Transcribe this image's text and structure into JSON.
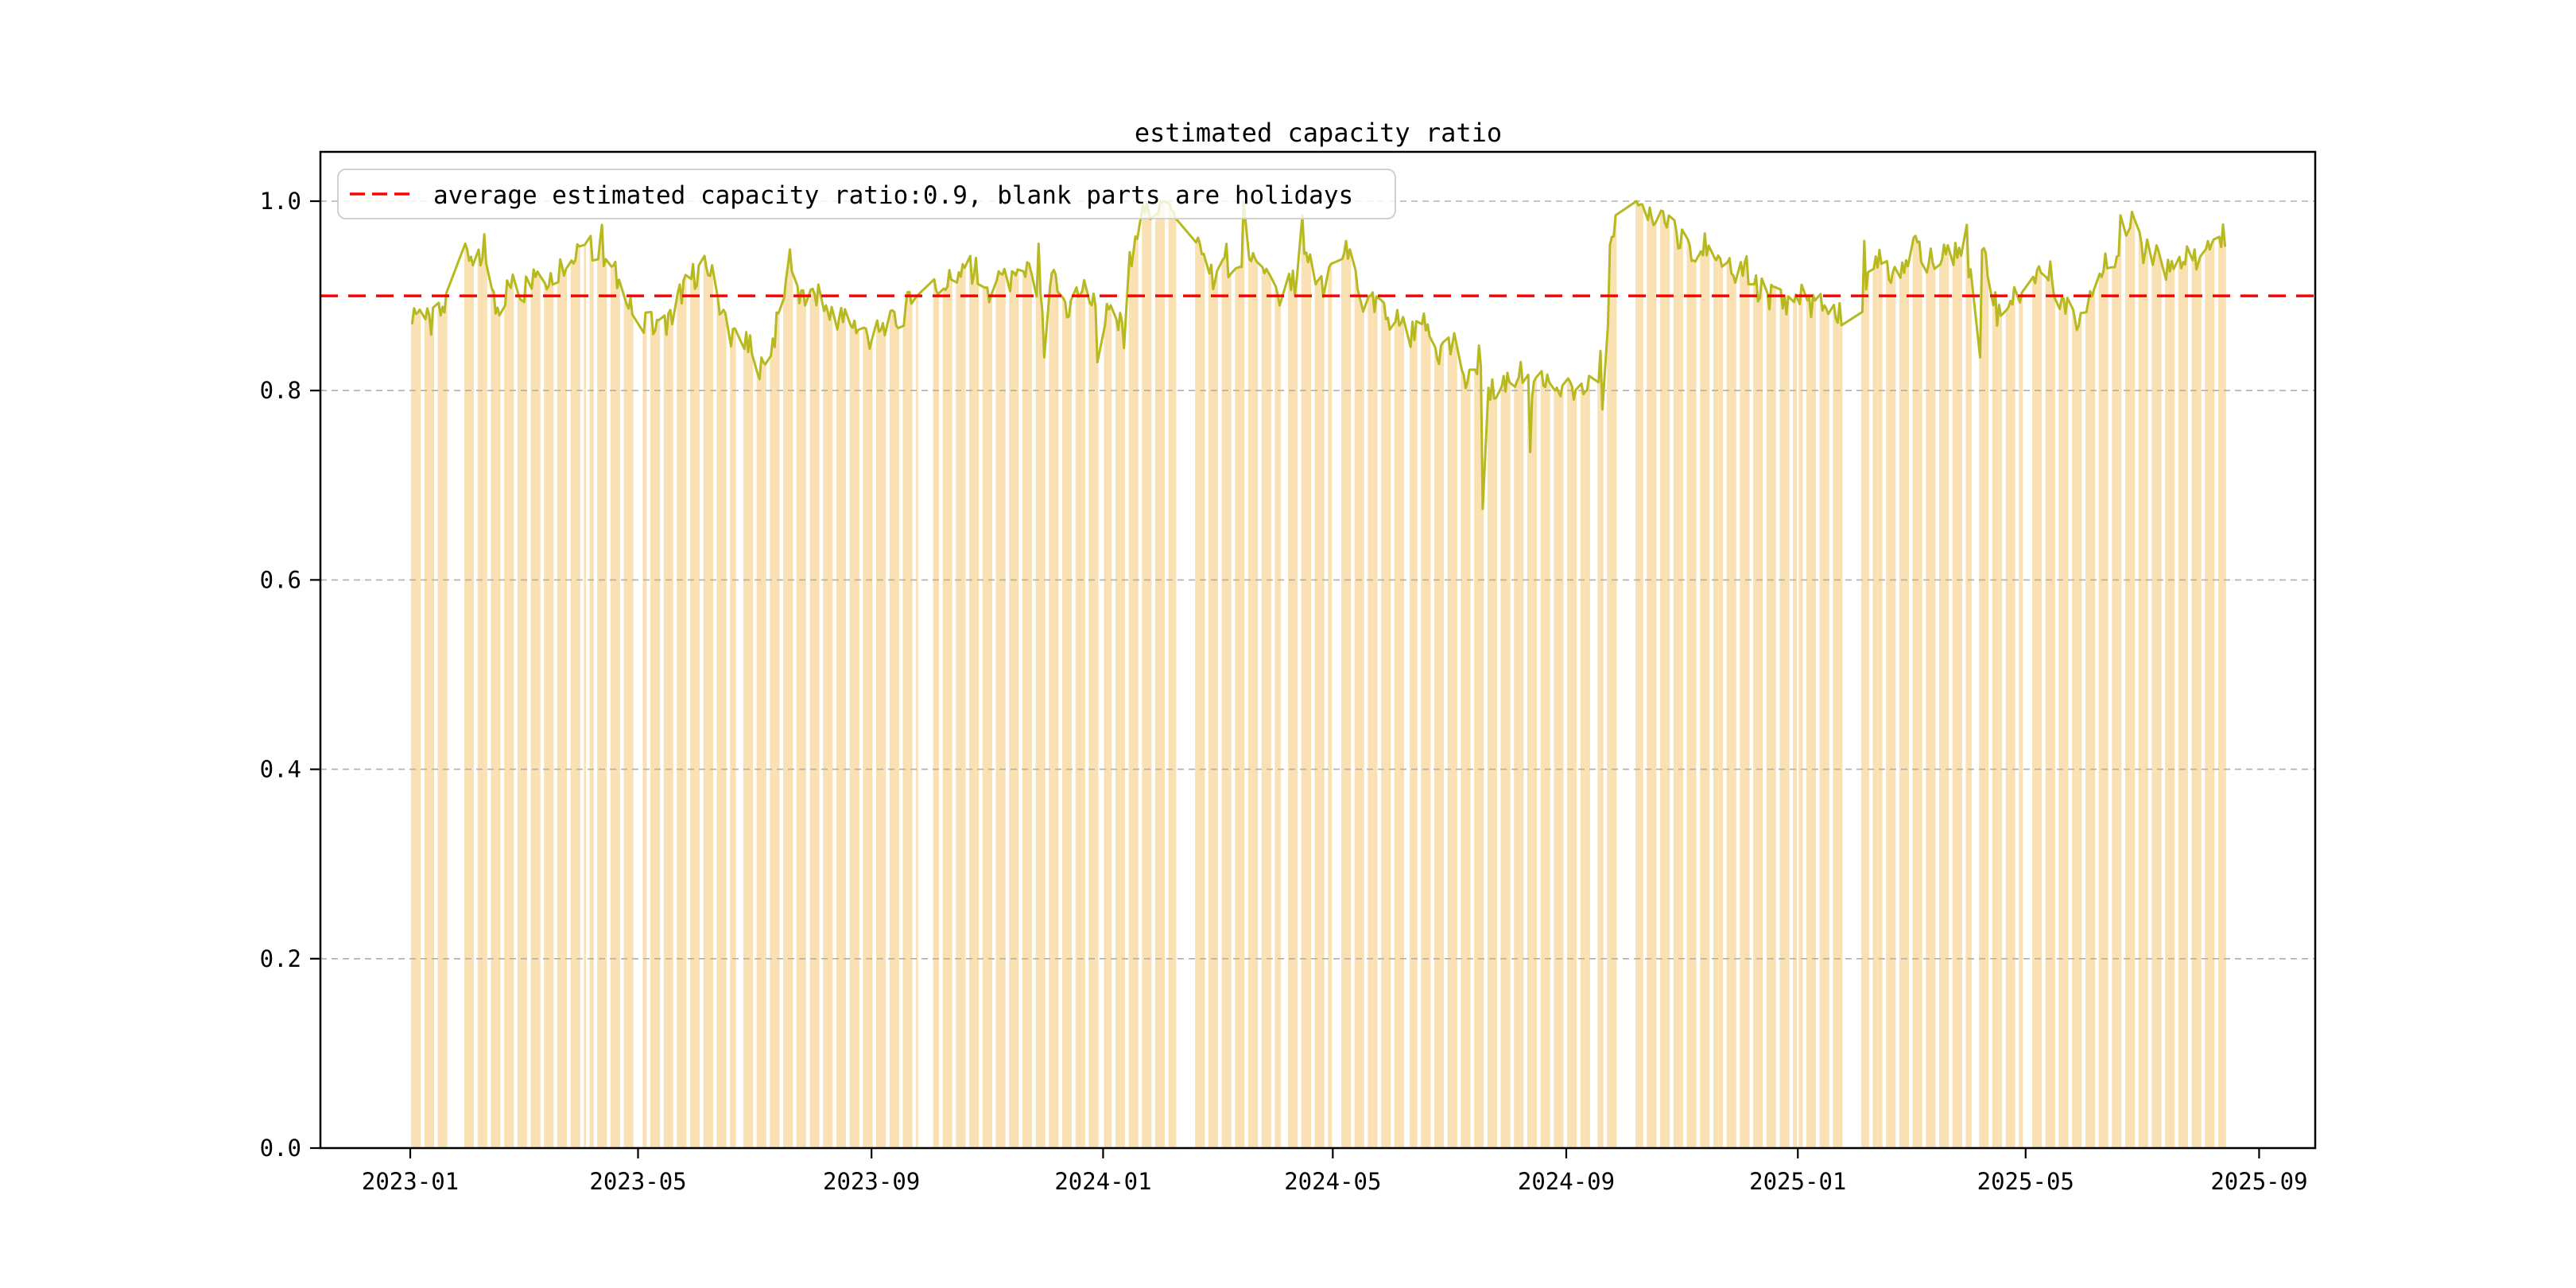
{
  "figure": {
    "background": "#ffffff"
  },
  "chart_data": {
    "type": "line",
    "title": "estimated capacity ratio",
    "legend": {
      "label": "average estimated capacity ratio:0.9, blank parts are holidays",
      "swatch": "red-dashed-line",
      "position": "upper-left"
    },
    "average_value": 0.9,
    "xlabel": "",
    "ylabel": "",
    "ylim": [
      0.0,
      1.05
    ],
    "yticks": [
      0.0,
      0.2,
      0.4,
      0.6,
      0.8,
      1.0
    ],
    "xticks": [
      "2023-01",
      "2023-05",
      "2023-09",
      "2024-01",
      "2024-05",
      "2024-09",
      "2025-01",
      "2025-05",
      "2025-09"
    ],
    "grid": "horizontal-dashed",
    "series_start_date": "2023-01-01",
    "series_end_day_index": 956,
    "weekly_values": [
      0.885,
      0.868,
      0.885,
      0.93,
      0.945,
      0.93,
      0.885,
      0.912,
      0.905,
      0.93,
      0.92,
      0.934,
      0.94,
      0.95,
      0.944,
      0.92,
      0.885,
      0.878,
      0.864,
      0.872,
      0.908,
      0.924,
      0.93,
      0.88,
      0.852,
      0.845,
      0.82,
      0.862,
      0.935,
      0.89,
      0.9,
      0.882,
      0.876,
      0.87,
      0.856,
      0.862,
      0.872,
      0.89,
      0.9,
      0.908,
      0.915,
      0.92,
      0.93,
      0.9,
      0.928,
      0.91,
      0.93,
      0.888,
      0.918,
      0.885,
      0.908,
      0.89,
      0.878,
      0.868,
      0.968,
      0.988,
      0.998,
      0.985,
      0.965,
      0.945,
      0.92,
      0.933,
      0.923,
      0.93,
      0.92,
      0.9,
      0.915,
      0.938,
      0.91,
      0.928,
      0.945,
      0.893,
      0.888,
      0.878,
      0.872,
      0.858,
      0.868,
      0.842,
      0.848,
      0.802,
      0.838,
      0.795,
      0.812,
      0.818,
      0.8,
      0.812,
      0.802,
      0.798,
      0.815,
      0.82,
      0.97,
      1.0,
      0.995,
      0.975,
      0.985,
      0.96,
      0.94,
      0.955,
      0.94,
      0.92,
      0.93,
      0.905,
      0.9,
      0.895,
      0.9,
      0.892,
      0.89,
      0.878,
      0.893,
      0.9,
      0.948,
      0.925,
      0.94,
      0.952,
      0.933,
      0.94,
      0.948,
      0.932,
      0.944,
      0.878,
      0.898,
      0.91,
      0.928,
      0.92,
      0.888,
      0.874,
      0.908,
      0.93,
      0.95,
      0.975,
      0.948,
      0.938,
      0.924,
      0.944,
      0.93,
      0.952,
      0.962
    ],
    "value_overrides": {
      "39": 0.965,
      "101": 0.975,
      "183": 0.818,
      "200": 0.949,
      "331": 0.955,
      "334": 0.835,
      "362": 0.83,
      "376": 0.845,
      "430": 0.955,
      "439": 1.0,
      "470": 0.985,
      "565": 0.675,
      "590": 0.735,
      "628": 0.78,
      "631": 0.87,
      "766": 0.958,
      "820": 0.975,
      "827": 0.835,
      "901": 0.985
    },
    "holiday_gaps": [
      [
        20,
        27
      ],
      [
        93,
        94
      ],
      [
        118,
        122
      ],
      [
        172,
        173
      ],
      [
        268,
        275
      ],
      [
        365,
        365
      ],
      [
        404,
        412
      ],
      [
        459,
        460
      ],
      [
        486,
        490
      ],
      [
        525,
        526
      ],
      [
        623,
        625
      ],
      [
        638,
        645
      ],
      [
        731,
        731
      ],
      [
        757,
        764
      ],
      [
        823,
        824
      ],
      [
        850,
        853
      ],
      [
        882,
        882
      ]
    ],
    "daily_jitter": 0.016,
    "colors": {
      "bars": "#f9e1b3",
      "line": "#b6b91f",
      "average": "#ff0000",
      "grid": "#b0b0b0",
      "axis": "#000000",
      "legend_border": "#cccccc"
    }
  }
}
